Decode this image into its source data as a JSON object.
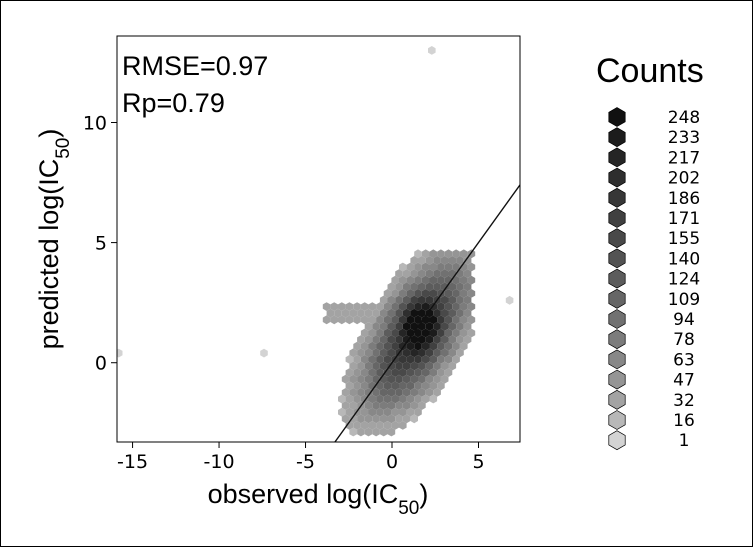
{
  "chart_data": {
    "type": "hexbin",
    "xlabel": {
      "prefix": "observed log(IC",
      "sub": "50",
      "suffix": ")"
    },
    "ylabel": {
      "prefix": "predicted log(IC",
      "sub": "50",
      "suffix": ")"
    },
    "xlim": [
      -15.9,
      7.4
    ],
    "ylim": [
      -3.3,
      13.6
    ],
    "xticks": [
      -15,
      -10,
      -5,
      0,
      5
    ],
    "yticks": [
      0,
      5,
      10
    ],
    "annotations": [
      "RMSE=0.97",
      "Rp=0.79"
    ],
    "regression_line": {
      "x1": -3.3,
      "y1": -3.3,
      "x2": 7.4,
      "y2": 7.4
    },
    "outlier_points": [
      {
        "x": -15.8,
        "y": 0.4
      },
      {
        "x": -7.4,
        "y": 0.4
      },
      {
        "x": 2.3,
        "y": 13.0
      },
      {
        "x": 6.8,
        "y": 2.6
      }
    ],
    "legend": {
      "title": "Counts",
      "levels": [
        248,
        233,
        217,
        202,
        186,
        171,
        155,
        140,
        124,
        109,
        94,
        78,
        63,
        47,
        32,
        16,
        1
      ],
      "colors": [
        "#111111",
        "#1c1c1c",
        "#252525",
        "#2e2e2e",
        "#373737",
        "#404040",
        "#494949",
        "#535353",
        "#5c5c5c",
        "#666666",
        "#717171",
        "#7c7c7c",
        "#888888",
        "#959595",
        "#a3a3a3",
        "#b8b8b8",
        "#d3d3d3"
      ]
    }
  }
}
